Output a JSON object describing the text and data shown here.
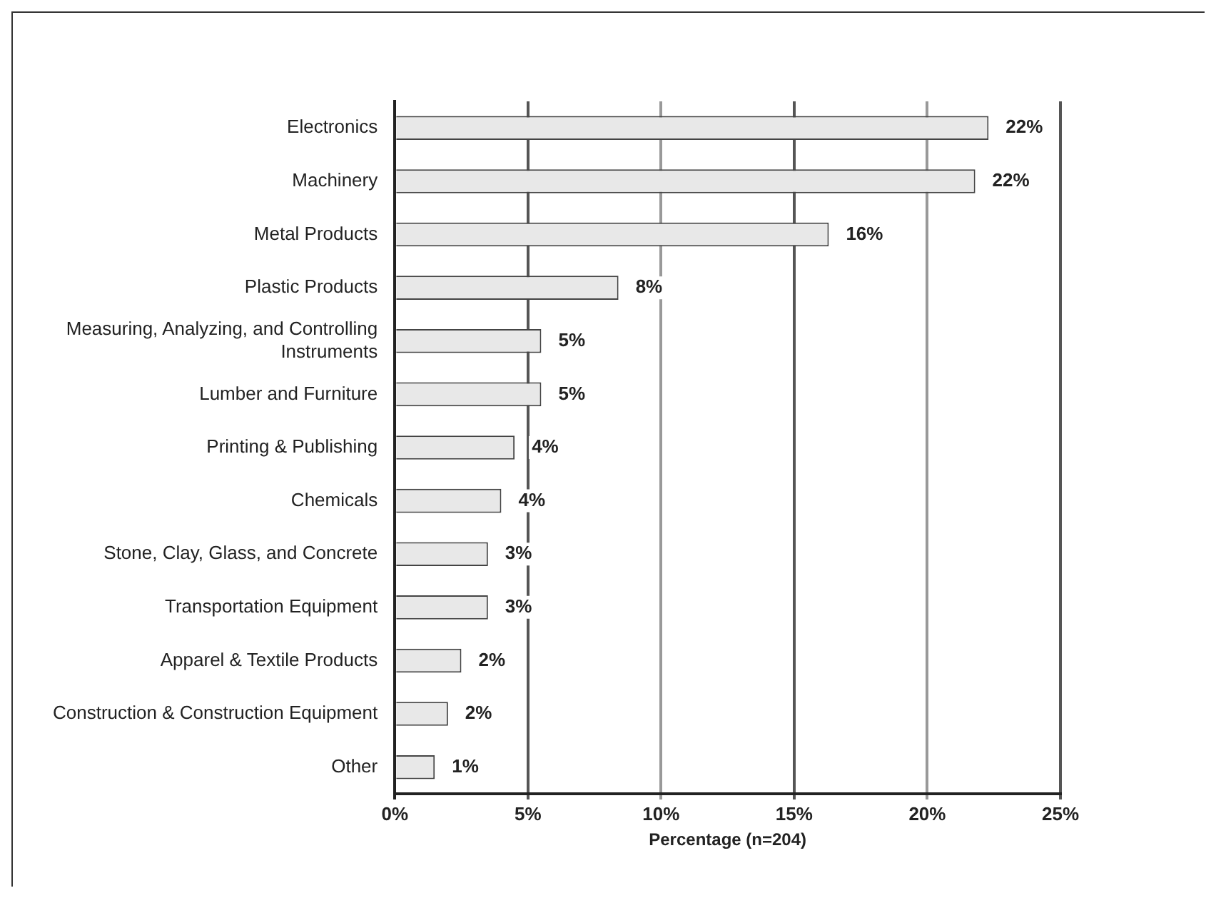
{
  "chart_data": {
    "type": "bar",
    "orientation": "horizontal",
    "xlabel": "Percentage (n=204)",
    "categories": [
      "Electronics",
      "Machinery",
      "Metal Products",
      "Plastic Products",
      "Measuring, Analyzing, and Controlling Instruments",
      "Lumber and Furniture",
      "Printing & Publishing",
      "Chemicals",
      "Stone, Clay, Glass, and Concrete",
      "Transportation Equipment",
      "Apparel & Textile Products",
      "Construction & Construction Equipment",
      "Other"
    ],
    "values": [
      22.3,
      21.8,
      16.3,
      8.4,
      5.5,
      5.5,
      4.5,
      4.0,
      3.5,
      3.5,
      2.5,
      2.0,
      1.5
    ],
    "value_labels": [
      "22%",
      "22%",
      "16%",
      "8%",
      "5%",
      "5%",
      "4%",
      "4%",
      "3%",
      "3%",
      "2%",
      "2%",
      "1%"
    ],
    "color": "#e8e8e8",
    "xlim": [
      0,
      25
    ],
    "xticks": [
      {
        "value": 0,
        "label": "0%"
      },
      {
        "value": 5,
        "label": "5%"
      },
      {
        "value": 10,
        "label": "10%"
      },
      {
        "value": 15,
        "label": "15%"
      },
      {
        "value": 20,
        "label": "20%"
      },
      {
        "value": 25,
        "label": "25%"
      }
    ],
    "grid": "x",
    "legend": false
  }
}
